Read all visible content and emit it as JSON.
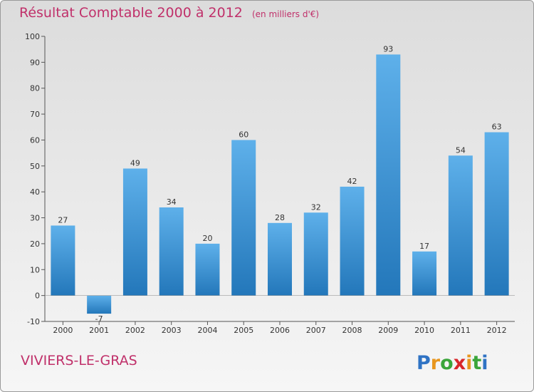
{
  "header": {
    "title": "Résultat Comptable 2000 à 2012",
    "subtitle": "(en milliers d'€)"
  },
  "footer": {
    "commune": "VIVIERS-LE-GRAS",
    "logo_text": "Proxiti"
  },
  "colors": {
    "title": "#c0306a",
    "bar_top": "#5eb0ea",
    "bar_bottom": "#2377ba"
  },
  "chart_data": {
    "type": "bar",
    "title": "Résultat Comptable 2000 à 2012",
    "subtitle": "(en milliers d'€)",
    "categories": [
      "2000",
      "2001",
      "2002",
      "2003",
      "2004",
      "2005",
      "2006",
      "2007",
      "2008",
      "2009",
      "2010",
      "2011",
      "2012"
    ],
    "values": [
      27,
      -7,
      49,
      34,
      20,
      60,
      28,
      32,
      42,
      93,
      17,
      54,
      63
    ],
    "ylim": [
      -10,
      100
    ],
    "yticks": [
      -10,
      0,
      10,
      20,
      30,
      40,
      50,
      60,
      70,
      80,
      90,
      100
    ],
    "grid": false
  }
}
